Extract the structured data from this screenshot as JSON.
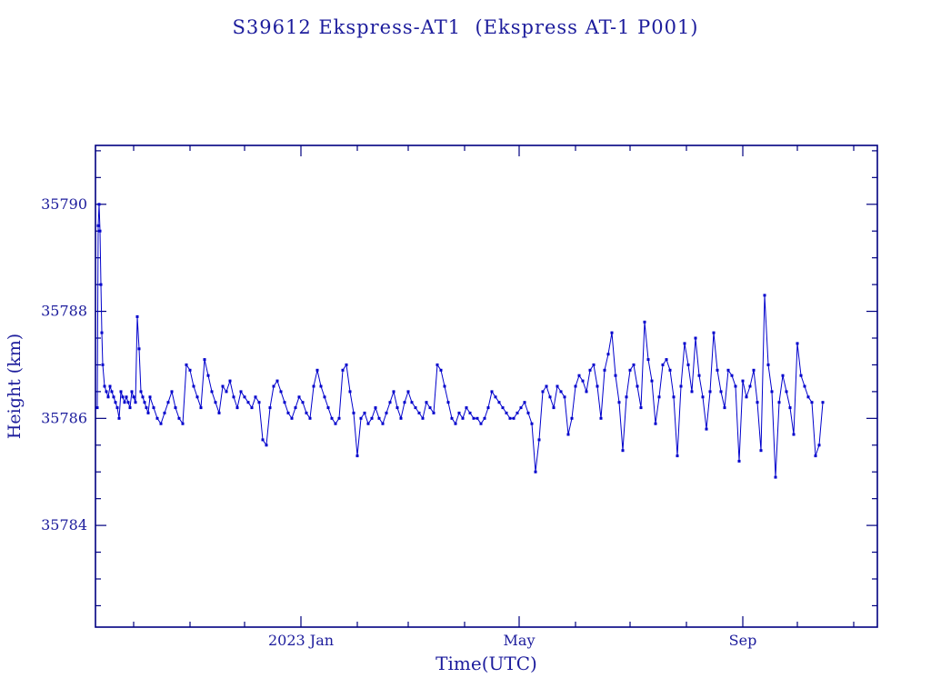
{
  "page": {
    "background": "#ffffff"
  },
  "chart_data": {
    "type": "line",
    "title": "S39612 Ekspress-AT1  (Ekspress AT-1 P001)",
    "xlabel": "Time(UTC)",
    "ylabel": "Height (km)",
    "legend": "none",
    "grid": false,
    "x_axis": {
      "unit": "days since 2022-09-10",
      "xlim": [
        0,
        430
      ],
      "major_ticks": [
        {
          "x": 113,
          "label": "2023 Jan"
        },
        {
          "x": 233,
          "label": "May"
        },
        {
          "x": 356,
          "label": "Sep"
        }
      ],
      "minor_ticks": [
        21,
        52,
        82,
        144,
        172,
        203,
        264,
        294,
        325,
        386,
        417
      ]
    },
    "y_axis": {
      "ylim": [
        35782.1,
        35791.1
      ],
      "major_ticks": [
        35784,
        35786,
        35788,
        35790
      ],
      "minor_step": 0.5
    },
    "colors": {
      "data": "#0000cc",
      "axis": "#000080",
      "text": "#1c1c9c"
    },
    "series": [
      {
        "name": "height_km",
        "marker": "square",
        "points": [
          [
            1,
            35786.2
          ],
          [
            1.5,
            35789.6
          ],
          [
            2,
            35790.0
          ],
          [
            2.5,
            35789.5
          ],
          [
            3,
            35788.5
          ],
          [
            3.5,
            35787.6
          ],
          [
            4,
            35787.0
          ],
          [
            5,
            35786.6
          ],
          [
            6,
            35786.5
          ],
          [
            7,
            35786.4
          ],
          [
            8,
            35786.6
          ],
          [
            9,
            35786.5
          ],
          [
            10,
            35786.4
          ],
          [
            11,
            35786.3
          ],
          [
            12,
            35786.2
          ],
          [
            13,
            35786.0
          ],
          [
            14,
            35786.5
          ],
          [
            15,
            35786.4
          ],
          [
            16,
            35786.3
          ],
          [
            17,
            35786.4
          ],
          [
            18,
            35786.3
          ],
          [
            19,
            35786.2
          ],
          [
            20,
            35786.5
          ],
          [
            21,
            35786.4
          ],
          [
            22,
            35786.3
          ],
          [
            23,
            35787.9
          ],
          [
            24,
            35787.3
          ],
          [
            25,
            35786.5
          ],
          [
            26,
            35786.4
          ],
          [
            27,
            35786.3
          ],
          [
            28,
            35786.2
          ],
          [
            29,
            35786.1
          ],
          [
            30,
            35786.4
          ],
          [
            32,
            35786.2
          ],
          [
            34,
            35786.0
          ],
          [
            36,
            35785.9
          ],
          [
            38,
            35786.1
          ],
          [
            40,
            35786.3
          ],
          [
            42,
            35786.5
          ],
          [
            44,
            35786.2
          ],
          [
            46,
            35786.0
          ],
          [
            48,
            35785.9
          ],
          [
            50,
            35787.0
          ],
          [
            52,
            35786.9
          ],
          [
            54,
            35786.6
          ],
          [
            56,
            35786.4
          ],
          [
            58,
            35786.2
          ],
          [
            60,
            35787.1
          ],
          [
            62,
            35786.8
          ],
          [
            64,
            35786.5
          ],
          [
            66,
            35786.3
          ],
          [
            68,
            35786.1
          ],
          [
            70,
            35786.6
          ],
          [
            72,
            35786.5
          ],
          [
            74,
            35786.7
          ],
          [
            76,
            35786.4
          ],
          [
            78,
            35786.2
          ],
          [
            80,
            35786.5
          ],
          [
            82,
            35786.4
          ],
          [
            84,
            35786.3
          ],
          [
            86,
            35786.2
          ],
          [
            88,
            35786.4
          ],
          [
            90,
            35786.3
          ],
          [
            92,
            35785.6
          ],
          [
            94,
            35785.5
          ],
          [
            96,
            35786.2
          ],
          [
            98,
            35786.6
          ],
          [
            100,
            35786.7
          ],
          [
            102,
            35786.5
          ],
          [
            104,
            35786.3
          ],
          [
            106,
            35786.1
          ],
          [
            108,
            35786.0
          ],
          [
            110,
            35786.2
          ],
          [
            112,
            35786.4
          ],
          [
            114,
            35786.3
          ],
          [
            116,
            35786.1
          ],
          [
            118,
            35786.0
          ],
          [
            120,
            35786.6
          ],
          [
            122,
            35786.9
          ],
          [
            124,
            35786.6
          ],
          [
            126,
            35786.4
          ],
          [
            128,
            35786.2
          ],
          [
            130,
            35786.0
          ],
          [
            132,
            35785.9
          ],
          [
            134,
            35786.0
          ],
          [
            136,
            35786.9
          ],
          [
            138,
            35787.0
          ],
          [
            140,
            35786.5
          ],
          [
            142,
            35786.1
          ],
          [
            144,
            35785.3
          ],
          [
            146,
            35786.0
          ],
          [
            148,
            35786.1
          ],
          [
            150,
            35785.9
          ],
          [
            152,
            35786.0
          ],
          [
            154,
            35786.2
          ],
          [
            156,
            35786.0
          ],
          [
            158,
            35785.9
          ],
          [
            160,
            35786.1
          ],
          [
            162,
            35786.3
          ],
          [
            164,
            35786.5
          ],
          [
            166,
            35786.2
          ],
          [
            168,
            35786.0
          ],
          [
            170,
            35786.3
          ],
          [
            172,
            35786.5
          ],
          [
            174,
            35786.3
          ],
          [
            176,
            35786.2
          ],
          [
            178,
            35786.1
          ],
          [
            180,
            35786.0
          ],
          [
            182,
            35786.3
          ],
          [
            184,
            35786.2
          ],
          [
            186,
            35786.1
          ],
          [
            188,
            35787.0
          ],
          [
            190,
            35786.9
          ],
          [
            192,
            35786.6
          ],
          [
            194,
            35786.3
          ],
          [
            196,
            35786.0
          ],
          [
            198,
            35785.9
          ],
          [
            200,
            35786.1
          ],
          [
            202,
            35786.0
          ],
          [
            204,
            35786.2
          ],
          [
            206,
            35786.1
          ],
          [
            208,
            35786.0
          ],
          [
            210,
            35786.0
          ],
          [
            212,
            35785.9
          ],
          [
            214,
            35786.0
          ],
          [
            216,
            35786.2
          ],
          [
            218,
            35786.5
          ],
          [
            220,
            35786.4
          ],
          [
            222,
            35786.3
          ],
          [
            224,
            35786.2
          ],
          [
            226,
            35786.1
          ],
          [
            228,
            35786.0
          ],
          [
            230,
            35786.0
          ],
          [
            232,
            35786.1
          ],
          [
            234,
            35786.2
          ],
          [
            236,
            35786.3
          ],
          [
            238,
            35786.1
          ],
          [
            240,
            35785.9
          ],
          [
            242,
            35785.0
          ],
          [
            244,
            35785.6
          ],
          [
            246,
            35786.5
          ],
          [
            248,
            35786.6
          ],
          [
            250,
            35786.4
          ],
          [
            252,
            35786.2
          ],
          [
            254,
            35786.6
          ],
          [
            256,
            35786.5
          ],
          [
            258,
            35786.4
          ],
          [
            260,
            35785.7
          ],
          [
            262,
            35786.0
          ],
          [
            264,
            35786.6
          ],
          [
            266,
            35786.8
          ],
          [
            268,
            35786.7
          ],
          [
            270,
            35786.5
          ],
          [
            272,
            35786.9
          ],
          [
            274,
            35787.0
          ],
          [
            276,
            35786.6
          ],
          [
            278,
            35786.0
          ],
          [
            280,
            35786.9
          ],
          [
            282,
            35787.2
          ],
          [
            284,
            35787.6
          ],
          [
            286,
            35786.8
          ],
          [
            288,
            35786.3
          ],
          [
            290,
            35785.4
          ],
          [
            292,
            35786.4
          ],
          [
            294,
            35786.9
          ],
          [
            296,
            35787.0
          ],
          [
            298,
            35786.6
          ],
          [
            300,
            35786.2
          ],
          [
            302,
            35787.8
          ],
          [
            304,
            35787.1
          ],
          [
            306,
            35786.7
          ],
          [
            308,
            35785.9
          ],
          [
            310,
            35786.4
          ],
          [
            312,
            35787.0
          ],
          [
            314,
            35787.1
          ],
          [
            316,
            35786.9
          ],
          [
            318,
            35786.4
          ],
          [
            320,
            35785.3
          ],
          [
            322,
            35786.6
          ],
          [
            324,
            35787.4
          ],
          [
            326,
            35787.0
          ],
          [
            328,
            35786.5
          ],
          [
            330,
            35787.5
          ],
          [
            332,
            35786.8
          ],
          [
            334,
            35786.4
          ],
          [
            336,
            35785.8
          ],
          [
            338,
            35786.5
          ],
          [
            340,
            35787.6
          ],
          [
            342,
            35786.9
          ],
          [
            344,
            35786.5
          ],
          [
            346,
            35786.2
          ],
          [
            348,
            35786.9
          ],
          [
            350,
            35786.8
          ],
          [
            352,
            35786.6
          ],
          [
            354,
            35785.2
          ],
          [
            356,
            35786.7
          ],
          [
            358,
            35786.4
          ],
          [
            360,
            35786.6
          ],
          [
            362,
            35786.9
          ],
          [
            364,
            35786.3
          ],
          [
            366,
            35785.4
          ],
          [
            368,
            35788.3
          ],
          [
            370,
            35787.0
          ],
          [
            372,
            35786.5
          ],
          [
            374,
            35784.9
          ],
          [
            376,
            35786.3
          ],
          [
            378,
            35786.8
          ],
          [
            380,
            35786.5
          ],
          [
            382,
            35786.2
          ],
          [
            384,
            35785.7
          ],
          [
            386,
            35787.4
          ],
          [
            388,
            35786.8
          ],
          [
            390,
            35786.6
          ],
          [
            392,
            35786.4
          ],
          [
            394,
            35786.3
          ],
          [
            396,
            35785.3
          ],
          [
            398,
            35785.5
          ],
          [
            400,
            35786.3
          ]
        ]
      }
    ]
  }
}
